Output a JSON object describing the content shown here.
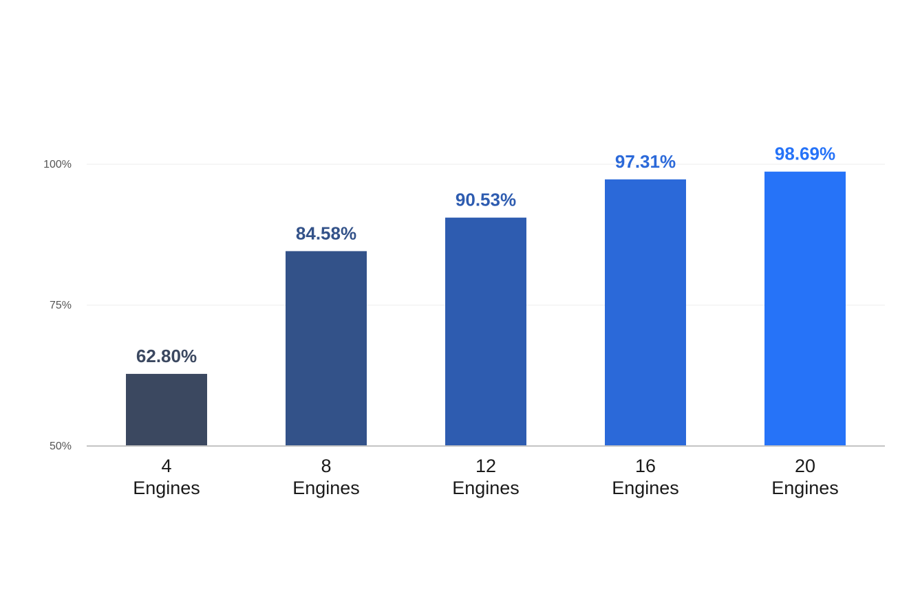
{
  "chart_data": {
    "type": "bar",
    "title": "",
    "xlabel": "",
    "ylabel": "",
    "categories": [
      [
        "4",
        "Engines"
      ],
      [
        "8",
        "Engines"
      ],
      [
        "12",
        "Engines"
      ],
      [
        "16",
        "Engines"
      ],
      [
        "20",
        "Engines"
      ]
    ],
    "values": [
      62.8,
      84.58,
      90.53,
      97.31,
      98.69
    ],
    "value_labels": [
      "62.80%",
      "84.58%",
      "90.53%",
      "97.31%",
      "98.69%"
    ],
    "colors": [
      "#3b4860",
      "#335289",
      "#2e5cb0",
      "#2b69d9",
      "#2673f8"
    ],
    "ylim": [
      50,
      100
    ],
    "y_ticks": [
      50,
      75,
      100
    ],
    "y_tick_labels": [
      "50%",
      "75%",
      "100%"
    ],
    "grid": true,
    "legend": "none"
  }
}
